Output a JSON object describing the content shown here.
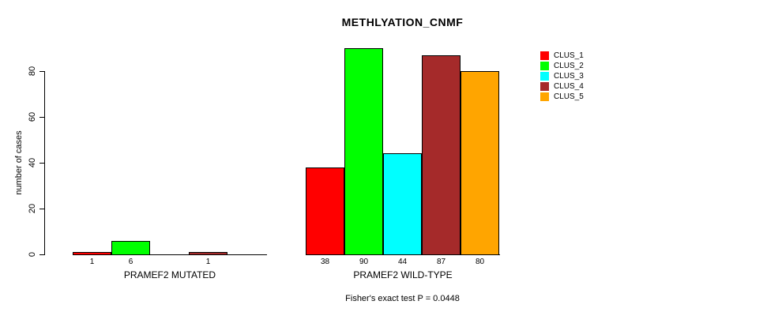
{
  "chart_data": {
    "type": "bar",
    "title": "METHLYATION_CNMF",
    "ylabel": "number of cases",
    "xlabel": "",
    "ylim": [
      0,
      90
    ],
    "yticks": [
      0,
      20,
      40,
      60,
      80
    ],
    "grid": false,
    "legend_position": "right",
    "zero_value_bars_hidden": true,
    "clusters": [
      {
        "name": "CLUS_1",
        "color": "#FF0000"
      },
      {
        "name": "CLUS_2",
        "color": "#00FF00"
      },
      {
        "name": "CLUS_3",
        "color": "#00FFFF"
      },
      {
        "name": "CLUS_4",
        "color": "#A52A2A"
      },
      {
        "name": "CLUS_5",
        "color": "#FFA500"
      }
    ],
    "groups": [
      {
        "label": "PRAMEF2 MUTATED",
        "values": [
          1,
          6,
          0,
          1,
          0
        ]
      },
      {
        "label": "PRAMEF2 WILD-TYPE",
        "values": [
          38,
          90,
          44,
          87,
          80
        ]
      }
    ],
    "footnote": "Fisher's exact test P = 0.0448"
  }
}
